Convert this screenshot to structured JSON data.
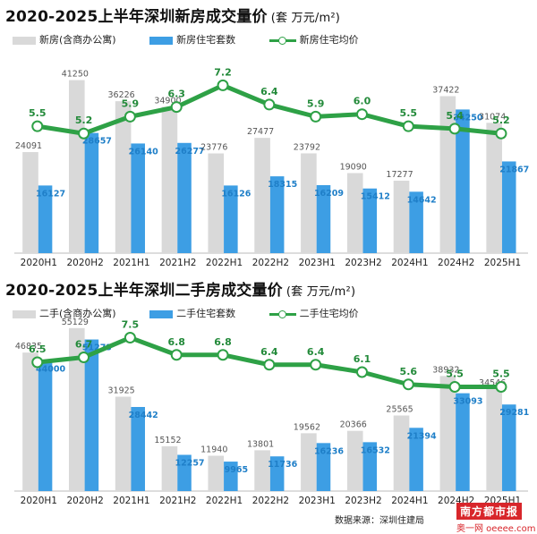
{
  "chart_data": [
    {
      "type": "bar",
      "title": "2020-2025上半年深圳新房成交量价",
      "unit": "(套   万元/m²)",
      "categories": [
        "2020H1",
        "2020H2",
        "2021H1",
        "2021H2",
        "2022H1",
        "2022H2",
        "2023H1",
        "2023H2",
        "2024H1",
        "2024H2",
        "2025H1"
      ],
      "series": [
        {
          "name": "新房(含商办公寓)",
          "kind": "bar",
          "color": "#d9d9d9",
          "values": [
            24091,
            41250,
            36226,
            34900,
            23776,
            27477,
            23792,
            19090,
            17277,
            37422,
            31074
          ]
        },
        {
          "name": "新房住宅套数",
          "kind": "bar",
          "color": "#3d9ee4",
          "values": [
            16127,
            28657,
            26140,
            26277,
            16126,
            18315,
            16209,
            15412,
            14642,
            34250,
            21867
          ]
        },
        {
          "name": "新房住宅均价",
          "kind": "line",
          "color": "#2ea146",
          "values": [
            5.5,
            5.2,
            5.9,
            6.3,
            7.2,
            6.4,
            5.9,
            6.0,
            5.5,
            5.4,
            5.2
          ]
        }
      ],
      "ylim": [
        0,
        45000
      ],
      "price_range": [
        0,
        7.6
      ]
    },
    {
      "type": "bar",
      "title": "2020-2025上半年深圳二手房成交量价",
      "unit": "(套   万元/m²)",
      "categories": [
        "2020H1",
        "2020H2",
        "2021H1",
        "2021H2",
        "2022H1",
        "2022H2",
        "2023H1",
        "2023H2",
        "2024H1",
        "2024H2",
        "2025H1"
      ],
      "series": [
        {
          "name": "二手(含商办公寓)",
          "kind": "bar",
          "color": "#d9d9d9",
          "values": [
            46835,
            55129,
            31925,
            15152,
            11940,
            13801,
            19562,
            20366,
            25565,
            38932,
            34546
          ]
        },
        {
          "name": "二手住宅套数",
          "kind": "bar",
          "color": "#3d9ee4",
          "values": [
            44000,
            51273,
            28442,
            12257,
            9965,
            11736,
            16236,
            16532,
            21394,
            33093,
            29281
          ]
        },
        {
          "name": "二手住宅均价",
          "kind": "line",
          "color": "#2ea146",
          "values": [
            6.5,
            6.7,
            7.5,
            6.8,
            6.8,
            6.4,
            6.4,
            6.1,
            5.6,
            5.5,
            5.5
          ]
        }
      ],
      "ylim": [
        0,
        59000
      ],
      "price_range": [
        0,
        7.6
      ]
    }
  ],
  "footer": {
    "source": "数据来源：深圳住建局",
    "brand": "南方都市报",
    "brand_sub": "奥一网 oeeee.com"
  }
}
